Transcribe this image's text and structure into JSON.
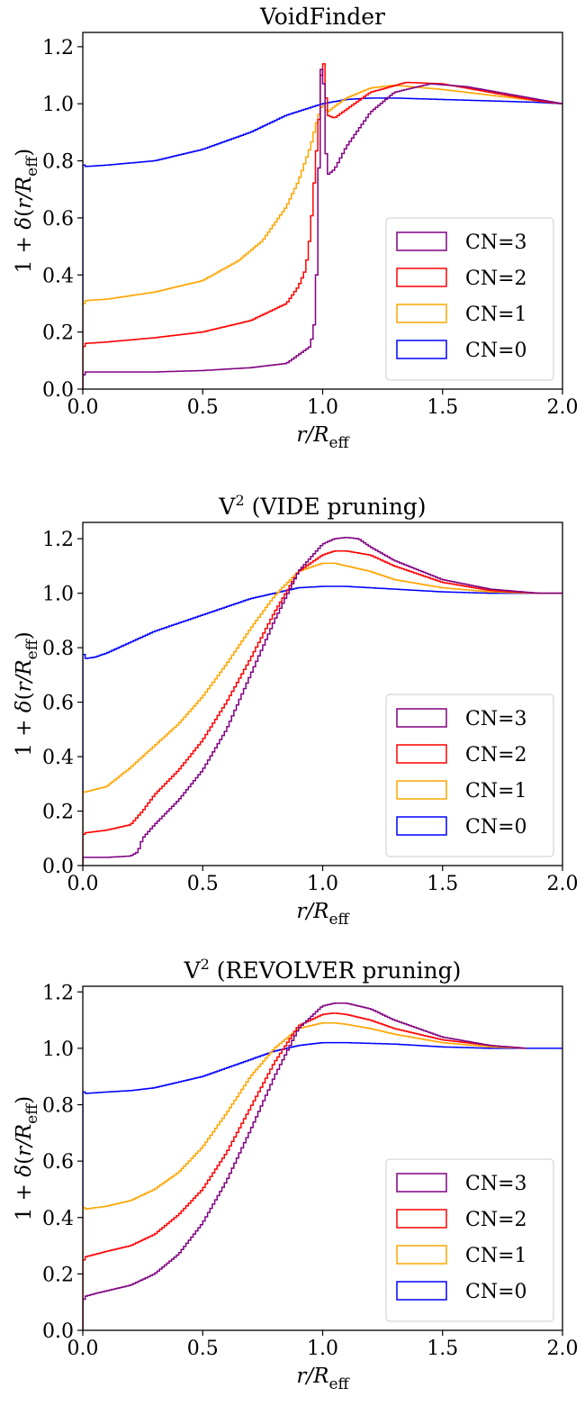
{
  "colors": {
    "CN=3": "#800080",
    "CN=2": "#ff0000",
    "CN=1": "#ffa500",
    "CN=0": "#0000ff"
  },
  "chart_data": [
    {
      "type": "line",
      "title": "VoidFinder",
      "xlabel": "r/R_eff",
      "ylabel": "1 + δ (r/R_eff)",
      "xlim": [
        0,
        2
      ],
      "ylim": [
        0,
        1.25
      ],
      "xticks": [
        "0.0",
        "0.5",
        "1.0",
        "1.5",
        "2.0"
      ],
      "yticks": [
        "0.0",
        "0.2",
        "0.4",
        "0.6",
        "0.8",
        "1.0",
        "1.2"
      ],
      "legend_position": "bottom-right",
      "legend": [
        "CN=3",
        "CN=2",
        "CN=1",
        "CN=0"
      ],
      "series": [
        {
          "name": "CN=3",
          "x": [
            0,
            0.01,
            0.1,
            0.3,
            0.5,
            0.7,
            0.85,
            0.95,
            0.97,
            0.98,
            0.99,
            1.0,
            1.01,
            1.02,
            1.05,
            1.1,
            1.2,
            1.3,
            1.45,
            1.6,
            1.8,
            2.0
          ],
          "y": [
            0.04,
            0.06,
            0.06,
            0.06,
            0.065,
            0.075,
            0.09,
            0.15,
            0.25,
            0.55,
            1.0,
            1.24,
            0.9,
            0.75,
            0.77,
            0.85,
            0.97,
            1.04,
            1.07,
            1.06,
            1.03,
            1.0
          ]
        },
        {
          "name": "CN=2",
          "x": [
            0,
            0.01,
            0.1,
            0.3,
            0.5,
            0.7,
            0.85,
            0.9,
            0.93,
            0.95,
            0.97,
            0.99,
            1.0,
            1.02,
            1.05,
            1.1,
            1.2,
            1.35,
            1.5,
            1.7,
            1.9,
            2.0
          ],
          "y": [
            0.14,
            0.16,
            0.165,
            0.18,
            0.2,
            0.24,
            0.3,
            0.36,
            0.42,
            0.55,
            0.78,
            1.0,
            1.2,
            0.96,
            0.95,
            0.98,
            1.04,
            1.075,
            1.07,
            1.04,
            1.01,
            1.0
          ]
        },
        {
          "name": "CN=1",
          "x": [
            0,
            0.01,
            0.1,
            0.3,
            0.5,
            0.65,
            0.75,
            0.85,
            0.9,
            0.95,
            0.98,
            1.0,
            1.02,
            1.05,
            1.1,
            1.2,
            1.3,
            1.5,
            1.7,
            1.9,
            2.0
          ],
          "y": [
            0.29,
            0.31,
            0.315,
            0.34,
            0.38,
            0.45,
            0.52,
            0.64,
            0.73,
            0.85,
            0.95,
            1.0,
            0.97,
            0.99,
            1.02,
            1.055,
            1.065,
            1.05,
            1.03,
            1.01,
            1.0
          ]
        },
        {
          "name": "CN=0",
          "x": [
            0,
            0.01,
            0.1,
            0.3,
            0.5,
            0.7,
            0.85,
            1.0,
            1.1,
            1.2,
            1.3,
            1.5,
            1.7,
            1.9,
            2.0
          ],
          "y": [
            0.79,
            0.78,
            0.785,
            0.8,
            0.84,
            0.9,
            0.96,
            1.0,
            1.015,
            1.02,
            1.02,
            1.015,
            1.01,
            1.005,
            1.0
          ]
        }
      ]
    },
    {
      "type": "line",
      "title": "V² (VIDE pruning)",
      "xlabel": "r/R_eff",
      "ylabel": "1 + δ (r/R_eff)",
      "xlim": [
        0,
        2
      ],
      "ylim": [
        0,
        1.26
      ],
      "xticks": [
        "0.0",
        "0.5",
        "1.0",
        "1.5",
        "2.0"
      ],
      "yticks": [
        "0.0",
        "0.2",
        "0.4",
        "0.6",
        "0.8",
        "1.0",
        "1.2"
      ],
      "legend_position": "bottom-right",
      "legend": [
        "CN=3",
        "CN=2",
        "CN=1",
        "CN=0"
      ],
      "series": [
        {
          "name": "CN=3",
          "x": [
            0,
            0.01,
            0.1,
            0.2,
            0.23,
            0.25,
            0.3,
            0.4,
            0.5,
            0.6,
            0.7,
            0.8,
            0.9,
            1.0,
            1.05,
            1.1,
            1.15,
            1.2,
            1.3,
            1.5,
            1.7,
            1.9,
            2.0
          ],
          "y": [
            0.03,
            0.03,
            0.03,
            0.035,
            0.05,
            0.1,
            0.15,
            0.24,
            0.35,
            0.5,
            0.7,
            0.9,
            1.08,
            1.18,
            1.2,
            1.205,
            1.2,
            1.17,
            1.12,
            1.05,
            1.015,
            1.0,
            1.0
          ]
        },
        {
          "name": "CN=2",
          "x": [
            0,
            0.01,
            0.1,
            0.2,
            0.25,
            0.3,
            0.4,
            0.5,
            0.6,
            0.7,
            0.8,
            0.9,
            1.0,
            1.05,
            1.1,
            1.2,
            1.3,
            1.5,
            1.7,
            1.9,
            2.0
          ],
          "y": [
            0.11,
            0.12,
            0.13,
            0.15,
            0.2,
            0.26,
            0.35,
            0.46,
            0.6,
            0.76,
            0.93,
            1.08,
            1.14,
            1.155,
            1.155,
            1.14,
            1.1,
            1.04,
            1.01,
            1.0,
            1.0
          ]
        },
        {
          "name": "CN=1",
          "x": [
            0,
            0.01,
            0.1,
            0.2,
            0.3,
            0.4,
            0.5,
            0.6,
            0.7,
            0.8,
            0.9,
            1.0,
            1.05,
            1.1,
            1.2,
            1.3,
            1.5,
            1.7,
            1.9,
            2.0
          ],
          "y": [
            0.27,
            0.27,
            0.29,
            0.36,
            0.44,
            0.52,
            0.62,
            0.74,
            0.87,
            0.99,
            1.08,
            1.11,
            1.11,
            1.1,
            1.08,
            1.05,
            1.02,
            1.005,
            1.0,
            1.0
          ]
        },
        {
          "name": "CN=0",
          "x": [
            0,
            0.01,
            0.05,
            0.1,
            0.2,
            0.3,
            0.5,
            0.7,
            0.9,
            1.0,
            1.1,
            1.3,
            1.5,
            1.7,
            1.9,
            2.0
          ],
          "y": [
            0.79,
            0.76,
            0.765,
            0.78,
            0.82,
            0.86,
            0.92,
            0.98,
            1.02,
            1.025,
            1.025,
            1.015,
            1.005,
            1.0,
            1.0,
            1.0
          ]
        }
      ]
    },
    {
      "type": "line",
      "title": "V² (REVOLVER pruning)",
      "xlabel": "r/R_eff",
      "ylabel": "1 + δ (r/R_eff)",
      "xlim": [
        0,
        2
      ],
      "ylim": [
        0,
        1.22
      ],
      "xticks": [
        "0.0",
        "0.5",
        "1.0",
        "1.5",
        "2.0"
      ],
      "yticks": [
        "0.0",
        "0.2",
        "0.4",
        "0.6",
        "0.8",
        "1.0",
        "1.2"
      ],
      "legend_position": "bottom-right",
      "legend": [
        "CN=3",
        "CN=2",
        "CN=1",
        "CN=0"
      ],
      "series": [
        {
          "name": "CN=3",
          "x": [
            0,
            0.01,
            0.05,
            0.1,
            0.2,
            0.3,
            0.4,
            0.5,
            0.6,
            0.7,
            0.8,
            0.9,
            1.0,
            1.05,
            1.1,
            1.2,
            1.3,
            1.5,
            1.7,
            1.85
          ],
          "y": [
            0.1,
            0.12,
            0.13,
            0.14,
            0.16,
            0.2,
            0.27,
            0.38,
            0.53,
            0.71,
            0.9,
            1.07,
            1.15,
            1.16,
            1.16,
            1.14,
            1.1,
            1.04,
            1.01,
            1.0
          ]
        },
        {
          "name": "CN=2",
          "x": [
            0,
            0.01,
            0.1,
            0.2,
            0.3,
            0.4,
            0.5,
            0.6,
            0.7,
            0.8,
            0.9,
            1.0,
            1.05,
            1.1,
            1.2,
            1.3,
            1.5,
            1.7,
            1.85
          ],
          "y": [
            0.24,
            0.26,
            0.28,
            0.3,
            0.34,
            0.41,
            0.5,
            0.63,
            0.79,
            0.95,
            1.08,
            1.12,
            1.125,
            1.12,
            1.1,
            1.07,
            1.03,
            1.01,
            1.0
          ]
        },
        {
          "name": "CN=1",
          "x": [
            0,
            0.01,
            0.1,
            0.2,
            0.3,
            0.4,
            0.5,
            0.6,
            0.7,
            0.8,
            0.9,
            1.0,
            1.05,
            1.1,
            1.2,
            1.3,
            1.5,
            1.7,
            1.85
          ],
          "y": [
            0.44,
            0.43,
            0.44,
            0.46,
            0.5,
            0.56,
            0.65,
            0.77,
            0.9,
            1.0,
            1.07,
            1.09,
            1.09,
            1.085,
            1.07,
            1.05,
            1.02,
            1.005,
            1.0
          ]
        },
        {
          "name": "CN=0",
          "x": [
            0,
            0.01,
            0.1,
            0.2,
            0.3,
            0.4,
            0.5,
            0.6,
            0.7,
            0.8,
            0.9,
            1.0,
            1.1,
            1.3,
            1.5,
            1.7,
            1.9,
            2.0
          ],
          "y": [
            0.85,
            0.84,
            0.845,
            0.85,
            0.86,
            0.88,
            0.9,
            0.93,
            0.96,
            0.99,
            1.01,
            1.02,
            1.02,
            1.015,
            1.005,
            1.0,
            1.0,
            1.0
          ]
        }
      ]
    }
  ]
}
